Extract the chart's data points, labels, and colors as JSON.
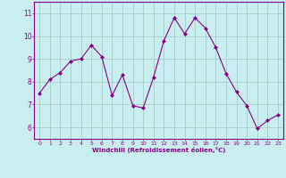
{
  "x": [
    0,
    1,
    2,
    3,
    4,
    5,
    6,
    7,
    8,
    9,
    10,
    11,
    12,
    13,
    14,
    15,
    16,
    17,
    18,
    19,
    20,
    21,
    22,
    23
  ],
  "y": [
    7.5,
    8.1,
    8.4,
    8.9,
    9.0,
    9.6,
    9.1,
    7.4,
    8.3,
    6.95,
    6.85,
    8.2,
    9.8,
    10.8,
    10.1,
    10.8,
    10.35,
    9.5,
    8.35,
    7.55,
    6.95,
    5.95,
    6.3,
    6.55
  ],
  "line_color": "#880088",
  "marker_color": "#880088",
  "bg_color": "#c8eef0",
  "grid_color": "#a0c8c0",
  "xlabel": "Windchill (Refroidissement éolien,°C)",
  "xlabel_color": "#880088",
  "tick_color": "#880088",
  "spine_color": "#880088",
  "ylim": [
    5.5,
    11.5
  ],
  "xlim": [
    -0.5,
    23.5
  ],
  "yticks": [
    6,
    7,
    8,
    9,
    10,
    11
  ],
  "xticks": [
    0,
    1,
    2,
    3,
    4,
    5,
    6,
    7,
    8,
    9,
    10,
    11,
    12,
    13,
    14,
    15,
    16,
    17,
    18,
    19,
    20,
    21,
    22,
    23
  ],
  "figsize": [
    3.2,
    2.0
  ],
  "dpi": 100
}
